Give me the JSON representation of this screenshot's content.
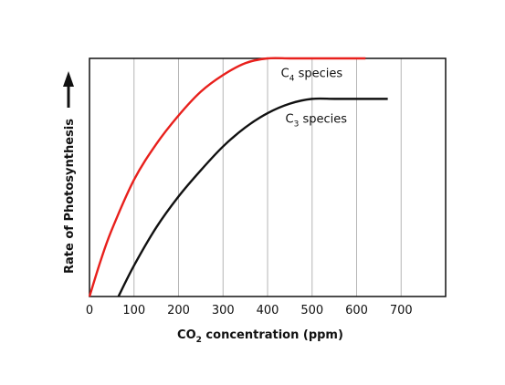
{
  "chart_data": {
    "type": "line",
    "xlabel": {
      "pre": "CO",
      "sub": "2",
      "post": " concentration (ppm)"
    },
    "ylabel": "Rate of Photosynthesis",
    "xlim": [
      0,
      800
    ],
    "ylim": [
      0,
      100
    ],
    "x_ticks": [
      0,
      100,
      200,
      300,
      400,
      500,
      600,
      700
    ],
    "grid": "vertical",
    "y_tick_labels": false,
    "series": [
      {
        "label_pre": "C",
        "label_sub": "4",
        "label_post": " species",
        "color": "#e8201c",
        "points": [
          [
            0,
            0
          ],
          [
            25,
            15
          ],
          [
            50,
            28
          ],
          [
            100,
            49
          ],
          [
            150,
            64
          ],
          [
            200,
            76
          ],
          [
            250,
            86
          ],
          [
            300,
            93
          ],
          [
            350,
            98
          ],
          [
            400,
            100
          ],
          [
            450,
            100
          ],
          [
            500,
            100
          ],
          [
            550,
            100
          ],
          [
            620,
            100
          ]
        ],
        "label_anchor": [
          430,
          94
        ]
      },
      {
        "label_pre": "C",
        "label_sub": "3",
        "label_post": " species",
        "color": "#111111",
        "points": [
          [
            65,
            0
          ],
          [
            100,
            13
          ],
          [
            150,
            29
          ],
          [
            200,
            42
          ],
          [
            250,
            53
          ],
          [
            300,
            63
          ],
          [
            350,
            71
          ],
          [
            400,
            77
          ],
          [
            450,
            81
          ],
          [
            500,
            83
          ],
          [
            550,
            83
          ],
          [
            600,
            83
          ],
          [
            670,
            83
          ]
        ],
        "label_anchor": [
          440,
          75
        ]
      }
    ]
  }
}
